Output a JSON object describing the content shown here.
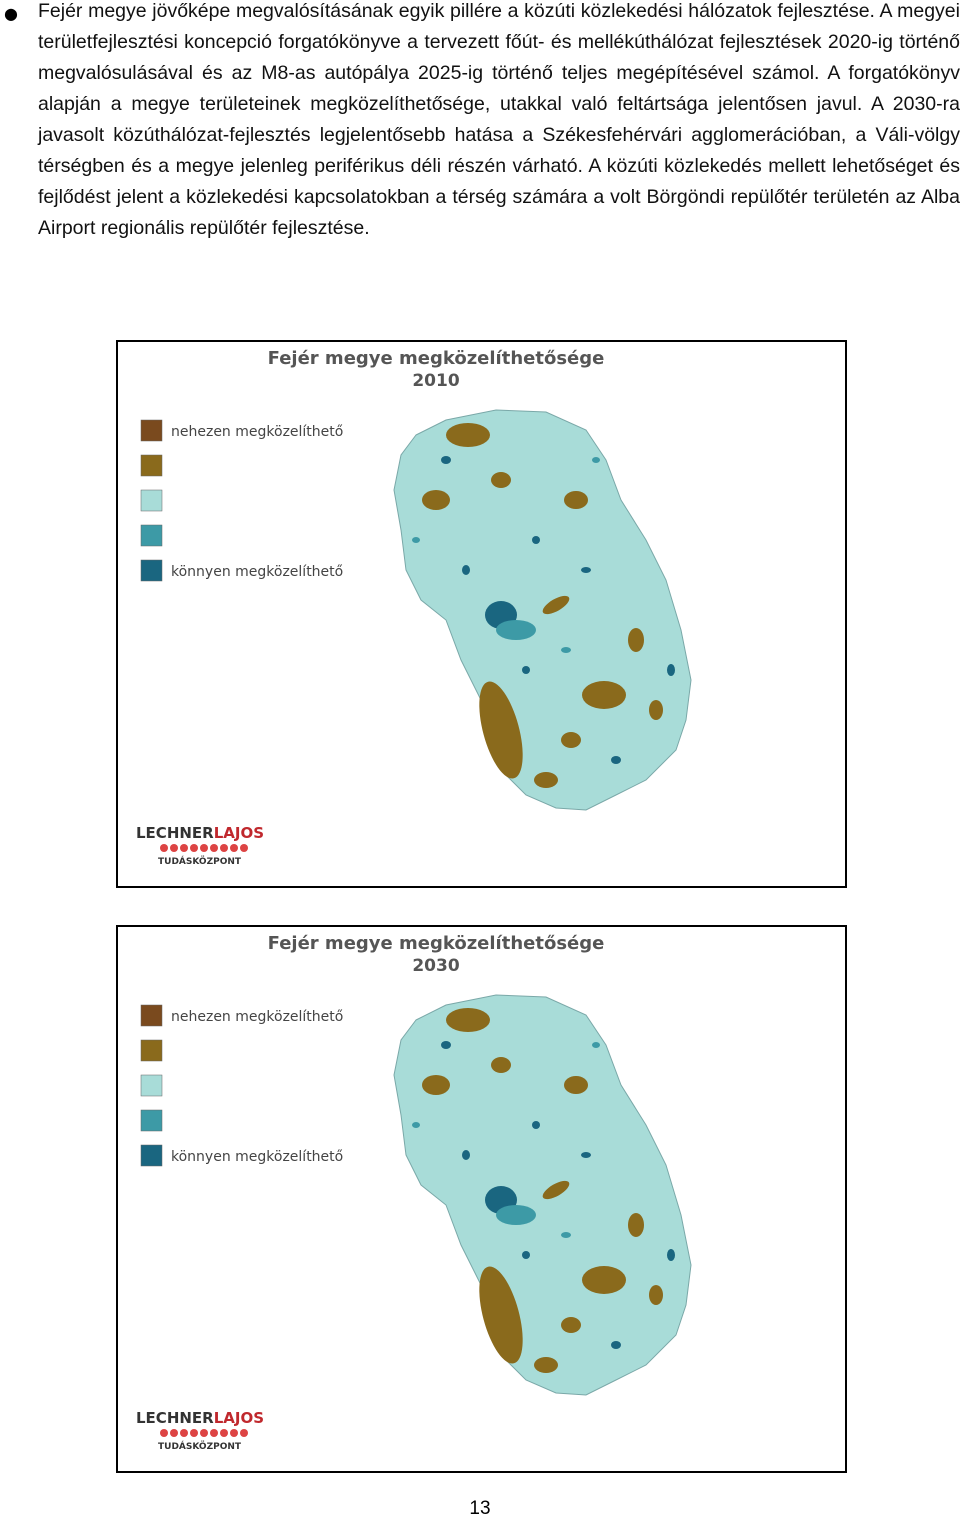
{
  "paragraph": "Fejér megye jövőképe megvalósításának egyik pillére a közúti közlekedési hálózatok fejlesztése. A megyei területfejlesztési koncepció forgatókönyve a tervezett főút- és mellékúthálózat fejlesztések 2020-ig történő megvalósulásával és az M8-as autópálya 2025-ig történő teljes megépítésével számol. A forgatókönyv alapján a megye területeinek megközelíthetősége, utakkal való feltártsága jelentősen javul. A 2030-ra javasolt közúthálózat-fejlesztés legjelentősebb hatása a Székesfehérvári agglomerációban, a Váli-völgy térségben és a megye jelenleg periférikus déli részén várható. A közúti közlekedés mellett lehetőséget és fejlődést jelent a közlekedési kapcsolatokban a térség számára a volt Börgöndi repülőtér területén az Alba Airport regionális repülőtér fejlesztése.",
  "maps": [
    {
      "title": "Fejér megye megközelíthetősége",
      "year": "2010",
      "legend_top": "nehezen megközelíthető",
      "legend_bottom": "könnyen megközelíthető",
      "legend_colors": [
        "#7a4a1e",
        "#8a6a1c",
        "#a8dcd8",
        "#3d9aa6",
        "#1a6680"
      ],
      "logo_dark": "LECHNER",
      "logo_red": "LAJOS",
      "logo_sub": "TUDÁSKÖZPONT"
    },
    {
      "title": "Fejér megye megközelíthetősége",
      "year": "2030",
      "legend_top": "nehezen megközelíthető",
      "legend_bottom": "könnyen megközelíthető",
      "legend_colors": [
        "#7a4a1e",
        "#8a6a1c",
        "#a8dcd8",
        "#3d9aa6",
        "#1a6680"
      ],
      "logo_dark": "LECHNER",
      "logo_red": "LAJOS",
      "logo_sub": "TUDÁSKÖZPONT"
    }
  ],
  "page_number": "13"
}
